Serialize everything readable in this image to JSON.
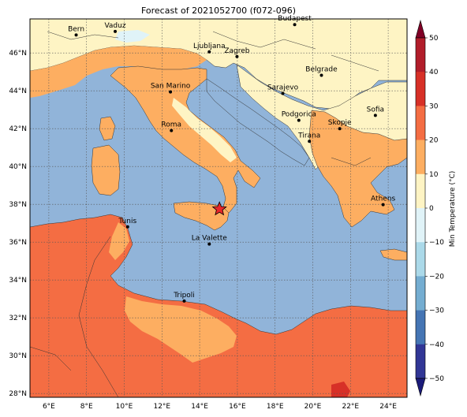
{
  "title": "Forecast of 2021052700 (f072-096)",
  "map": {
    "lon_labels": [
      "6°E",
      "8°E",
      "10°E",
      "12°E",
      "14°E",
      "16°E",
      "18°E",
      "20°E",
      "22°E",
      "24°E"
    ],
    "lat_labels": [
      "46°N",
      "44°N",
      "42°N",
      "40°N",
      "38°N",
      "36°N",
      "34°N",
      "32°N",
      "30°N",
      "28°N"
    ],
    "cities": [
      {
        "name": "Bern",
        "lon": 7.45,
        "lat": 46.95
      },
      {
        "name": "Vaduz",
        "lon": 9.52,
        "lat": 47.14
      },
      {
        "name": "Budapest",
        "lon": 19.04,
        "lat": 47.5
      },
      {
        "name": "Ljubljana",
        "lon": 14.51,
        "lat": 46.06
      },
      {
        "name": "Zagreb",
        "lon": 15.98,
        "lat": 45.81
      },
      {
        "name": "Belgrade",
        "lon": 20.46,
        "lat": 44.82
      },
      {
        "name": "San Marino",
        "lon": 12.45,
        "lat": 43.94
      },
      {
        "name": "Sarajevo",
        "lon": 18.41,
        "lat": 43.86
      },
      {
        "name": "Sofia",
        "lon": 23.32,
        "lat": 42.7
      },
      {
        "name": "Roma",
        "lon": 12.5,
        "lat": 41.9
      },
      {
        "name": "Podgorica",
        "lon": 19.26,
        "lat": 42.44
      },
      {
        "name": "Skopje",
        "lon": 21.43,
        "lat": 42.0
      },
      {
        "name": "Tirana",
        "lon": 19.82,
        "lat": 41.33
      },
      {
        "name": "Athens",
        "lon": 23.73,
        "lat": 37.98
      },
      {
        "name": "Tunis",
        "lon": 10.18,
        "lat": 36.81
      },
      {
        "name": "La Valette",
        "lon": 14.51,
        "lat": 35.9
      },
      {
        "name": "Tripoli",
        "lon": 13.18,
        "lat": 32.89
      }
    ],
    "marker": {
      "lon": 15.05,
      "lat": 37.75,
      "color": "#e8262a"
    }
  },
  "colorbar": {
    "label": "Min Temperature (°C)",
    "ticks": [
      "50",
      "40",
      "30",
      "20",
      "10",
      "0",
      "−10",
      "−20",
      "−30",
      "−40",
      "−50"
    ],
    "bands": [
      "#800026",
      "#b11d2a",
      "#d73027",
      "#f46d43",
      "#fdae61",
      "#fef4c4",
      "#e0f3f8",
      "#abd9e9",
      "#74add1",
      "#4575b4",
      "#313695",
      "#1b1b7a"
    ]
  },
  "colors": {
    "sea": "#91b4d9",
    "warm_land": "#fdae61",
    "hot_land": "#f46d43",
    "cool_land": "#fef4c4",
    "very_hot": "#d73027"
  }
}
